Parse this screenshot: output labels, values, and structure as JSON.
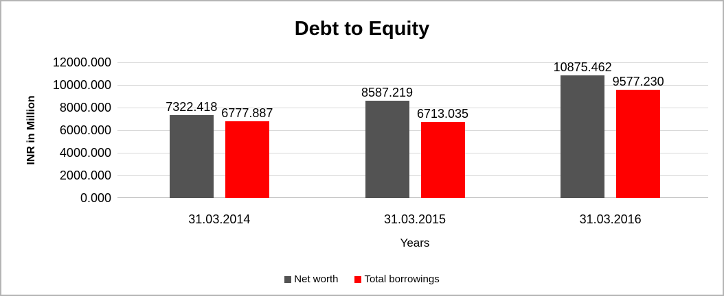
{
  "chart_data": {
    "type": "bar",
    "title": "Debt to Equity",
    "xlabel": "Years",
    "ylabel": "INR in Million",
    "categories": [
      "31.03.2014",
      "31.03.2015",
      "31.03.2016"
    ],
    "series": [
      {
        "name": "Net worth",
        "color": "#535353",
        "values": [
          7322.418,
          8587.219,
          10875.462
        ]
      },
      {
        "name": "Total borrowings",
        "color": "#FF0000",
        "values": [
          6777.887,
          6713.035,
          9577.23
        ]
      }
    ],
    "ylim": [
      0,
      12000
    ],
    "ytick_step": 2000,
    "ytick_decimals": 3,
    "data_label_decimals": 3,
    "grid": true,
    "legend_position": "bottom"
  },
  "colors": {
    "gridline": "#D9D9D9",
    "axis_line": "#BFBFBF",
    "text": "#000000",
    "background": "#FFFFFF",
    "frame_border": "#B4B4B4"
  }
}
